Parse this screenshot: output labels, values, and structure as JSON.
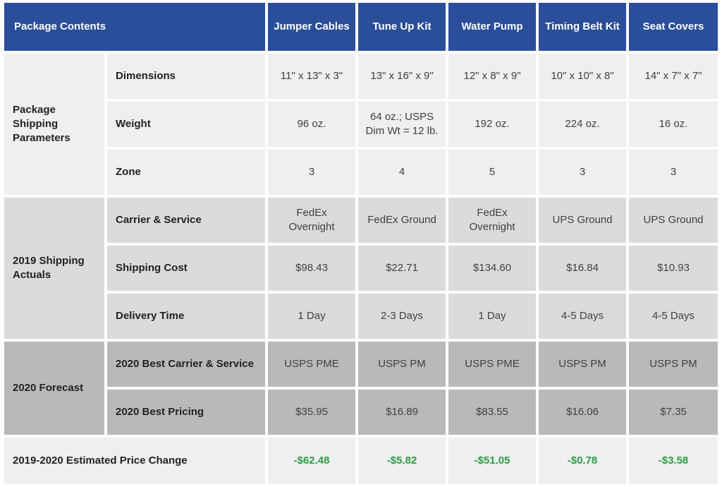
{
  "chart_data": {
    "type": "table",
    "corner_header": "Package Contents",
    "columns": [
      "Jumper Cables",
      "Tune Up Kit",
      "Water Pump",
      "Timing Belt Kit",
      "Seat Covers"
    ],
    "sections": [
      {
        "group": "Package Shipping Parameters",
        "rows": [
          {
            "label": "Dimensions",
            "values": [
              "11\" x 13\" x 3\"",
              "13\" x 16\" x 9\"",
              "12\" x 8\" x 9\"",
              "10\" x 10\" x 8\"",
              "14\" x 7\" x 7\""
            ]
          },
          {
            "label": "Weight",
            "values": [
              "96 oz.",
              "64 oz.; USPS Dim Wt = 12 lb.",
              "192 oz.",
              "224 oz.",
              "16 oz."
            ]
          },
          {
            "label": "Zone",
            "values": [
              "3",
              "4",
              "5",
              "3",
              "3"
            ]
          }
        ]
      },
      {
        "group": "2019 Shipping Actuals",
        "rows": [
          {
            "label": "Carrier & Service",
            "values": [
              "FedEx Overnight",
              "FedEx Ground",
              "FedEx Overnight",
              "UPS Ground",
              "UPS Ground"
            ]
          },
          {
            "label": "Shipping Cost",
            "values": [
              "$98.43",
              "$22.71",
              "$134.60",
              "$16.84",
              "$10.93"
            ]
          },
          {
            "label": "Delivery Time",
            "values": [
              "1 Day",
              "2-3 Days",
              "1 Day",
              "4-5 Days",
              "4-5 Days"
            ]
          }
        ]
      },
      {
        "group": "2020 Forecast",
        "rows": [
          {
            "label": "2020 Best Carrier & Service",
            "values": [
              "USPS PME",
              "USPS PM",
              "USPS PME",
              "USPS PM",
              "USPS PM"
            ]
          },
          {
            "label": "2020 Best Pricing",
            "values": [
              "$35.95",
              "$16.89",
              "$83.55",
              "$16.06",
              "$7.35"
            ]
          }
        ]
      }
    ],
    "footer": {
      "label": "2019-2020 Estimated Price Change",
      "values": [
        "-$62.48",
        "-$5.82",
        "-$51.05",
        "-$0.78",
        "-$3.58"
      ]
    }
  },
  "colors": {
    "header_blue": "#2a4e99",
    "header_text": "#ffffff",
    "section1_bg": "#efefef",
    "section2_bg": "#dbdbdb",
    "section3_bg": "#b9b9b9",
    "footer_bg": "#efefef",
    "negative_green": "#2e9b47",
    "label_text": "#222222",
    "value_text": "#414042"
  }
}
